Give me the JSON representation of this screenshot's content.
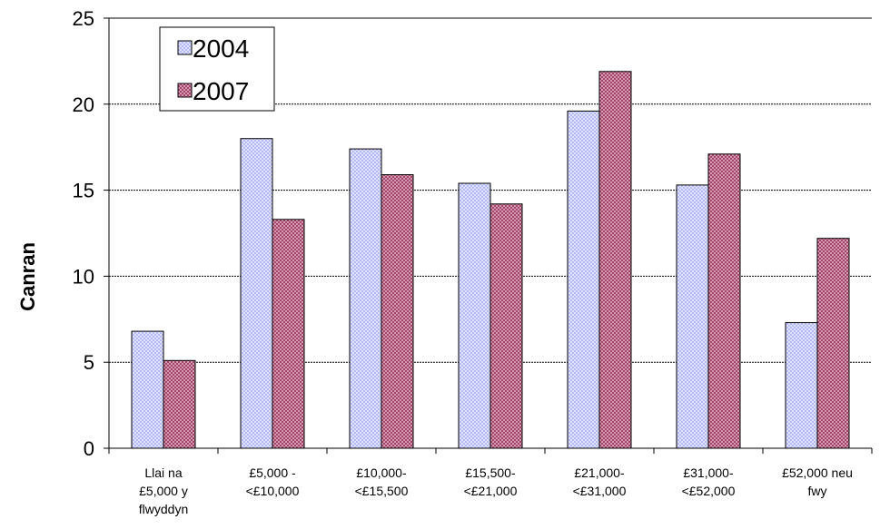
{
  "chart_data": {
    "type": "bar",
    "title": "",
    "xlabel": "",
    "ylabel": "Canran",
    "ylim": [
      0,
      25
    ],
    "yticks": [
      0,
      5,
      10,
      15,
      20,
      25
    ],
    "grid": true,
    "legend_position": "top-left",
    "categories": [
      [
        "Llai na",
        "£5,000 y",
        "flwyddyn"
      ],
      [
        "£5,000 -",
        "<£10,000"
      ],
      [
        "£10,000-",
        "<£15,500"
      ],
      [
        "£15,500-",
        "<£21,000"
      ],
      [
        "£21,000-",
        "<£31,000"
      ],
      [
        "£31,000-",
        "<£52,000"
      ],
      [
        "£52,000 neu",
        "fwy"
      ]
    ],
    "series": [
      {
        "name": "2004",
        "color": "#aab0f4",
        "values": [
          6.8,
          18.0,
          17.4,
          15.4,
          19.6,
          15.3,
          7.3
        ]
      },
      {
        "name": "2007",
        "color": "#a0446a",
        "values": [
          5.1,
          13.3,
          15.9,
          14.2,
          21.9,
          17.1,
          12.2
        ]
      }
    ]
  }
}
